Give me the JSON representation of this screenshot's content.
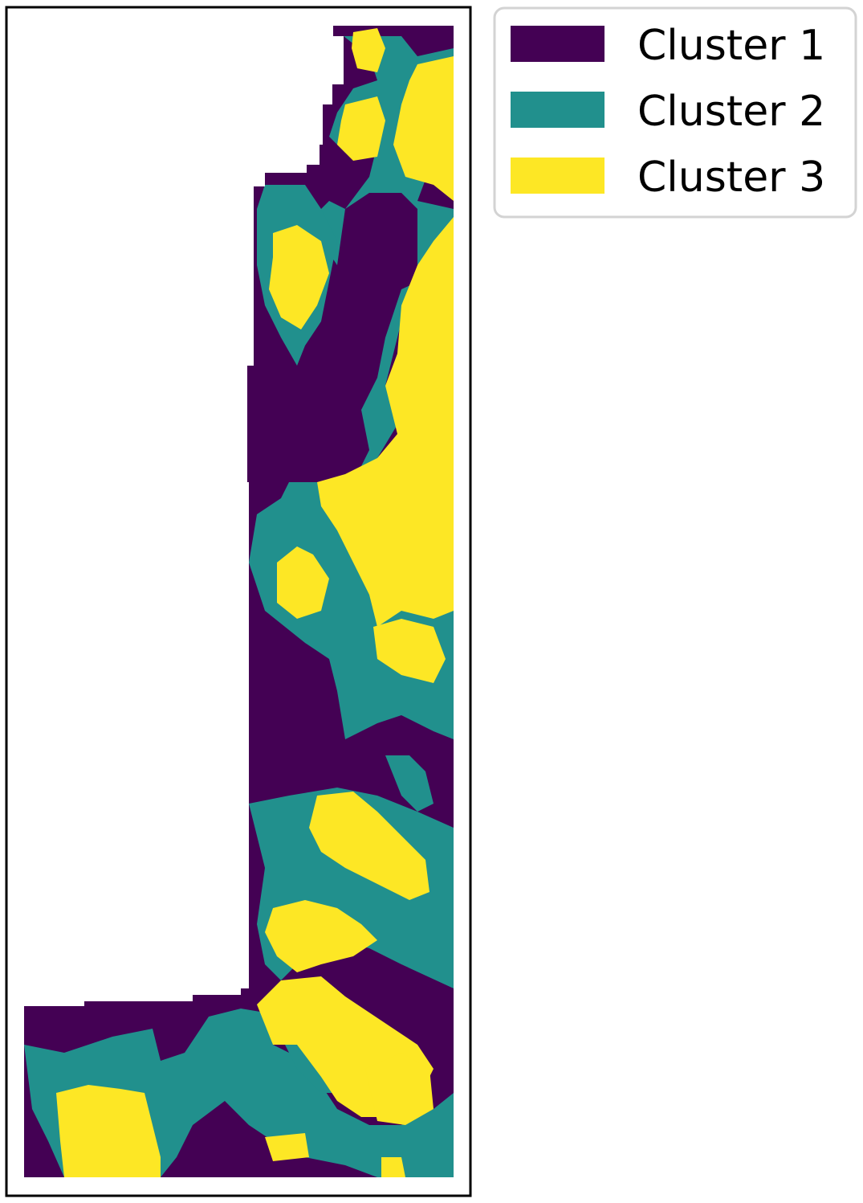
{
  "chart_data": {
    "type": "heatmap",
    "title": "",
    "xlabel": "",
    "ylabel": "",
    "grid": false,
    "legend_position": "outside-top-right",
    "axes_ticks": "none",
    "colors": {
      "Cluster 1": "#440154",
      "Cluster 2": "#21908d",
      "Cluster 3": "#fde725",
      "no_data": "#ffffff"
    },
    "legend": [
      {
        "label": "Cluster 1",
        "color": "#440154"
      },
      {
        "label": "Cluster 2",
        "color": "#21908d"
      },
      {
        "label": "Cluster 3",
        "color": "#fde725"
      }
    ],
    "series": [
      {
        "name": "Cluster 1",
        "values": [
          1
        ]
      },
      {
        "name": "Cluster 2",
        "values": [
          2
        ]
      },
      {
        "name": "Cluster 3",
        "values": [
          3
        ]
      }
    ]
  }
}
